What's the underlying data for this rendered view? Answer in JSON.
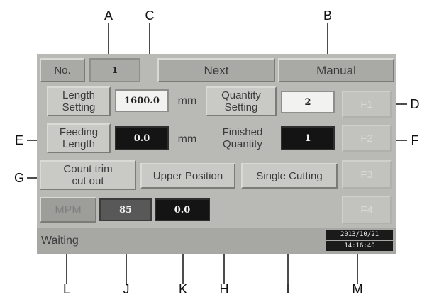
{
  "header": {
    "no_label": "No.",
    "no_value": "1",
    "next_label": "Next",
    "manual_label": "Manual"
  },
  "length_setting": {
    "label_line1": "Length",
    "label_line2": "Setting",
    "value": "1600.0",
    "unit": "mm"
  },
  "quantity_setting": {
    "label_line1": "Quantity",
    "label_line2": "Setting",
    "value": "2"
  },
  "feeding_length": {
    "label_line1": "Feeding",
    "label_line2": "Length",
    "value": "0.0",
    "unit": "mm"
  },
  "finished_quantity": {
    "label_line1": "Finished",
    "label_line2": "Quantity",
    "value": "1"
  },
  "function_keys": [
    "F1",
    "F2",
    "F3",
    "F4"
  ],
  "buttons": {
    "count_trim_line1": "Count trim",
    "count_trim_line2": "cut out",
    "upper_position": "Upper Position",
    "single_cutting": "Single Cutting"
  },
  "mpm": {
    "label": "MPM",
    "value1": "85",
    "value2": "0.0"
  },
  "status": {
    "text": "Waiting",
    "date": "2013/10/21",
    "time": "14:16:40"
  },
  "callouts": [
    "A",
    "B",
    "C",
    "D",
    "E",
    "F",
    "G",
    "H",
    "I",
    "J",
    "K",
    "L",
    "M"
  ]
}
